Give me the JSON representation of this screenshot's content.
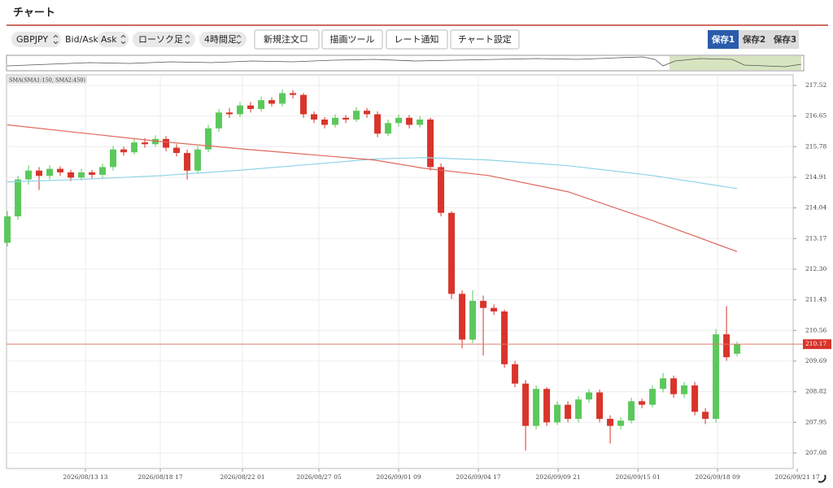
{
  "header": {
    "title": "チャート"
  },
  "toolbar": {
    "symbol": "GBPJPY",
    "price_label": "Bid/Ask",
    "price_side": "Ask",
    "chart_style": "ローソク足",
    "timeframe": "4時間足",
    "buttons": [
      "新規注文",
      "描画ツール",
      "レート通知",
      "チャート設定"
    ],
    "saves": [
      "保存1",
      "保存2",
      "保存3"
    ]
  },
  "chart_data": {
    "type": "candlestick",
    "indicator_label": "SMA(SMA1:150, SMA2:450)",
    "up_color": "#5cc85c",
    "down_color": "#d9342b",
    "grid": true,
    "xlim": [
      -0.08,
      74.3
    ],
    "ylim": [
      206.64,
      217.82
    ],
    "xticks": [
      {
        "value": 7.38,
        "label": "2026/08/13 13"
      },
      {
        "value": 14.46,
        "label": "2026/08/18 17"
      },
      {
        "value": 22.23,
        "label": "2026/08/22 01"
      },
      {
        "value": 29.46,
        "label": "2026/08/27 05"
      },
      {
        "value": 37.0,
        "label": "2026/09/01 09"
      },
      {
        "value": 44.54,
        "label": "2026/09/04 17"
      },
      {
        "value": 52.08,
        "label": "2026/09/09 21"
      },
      {
        "value": 59.62,
        "label": "2026/09/15 01"
      },
      {
        "value": 67.15,
        "label": "2026/09/18 09"
      },
      {
        "value": 74.69,
        "label": "2026/09/21 17"
      }
    ],
    "yticks": [
      217.52,
      216.65,
      215.78,
      214.91,
      214.04,
      213.17,
      {
        "value": 212.3,
        "label": "212.30"
      },
      211.43,
      210.56,
      209.69,
      208.82,
      207.95,
      207.08
    ],
    "open": [
      213.05,
      213.8,
      214.85,
      215.1,
      214.95,
      215.15,
      215.05,
      214.9,
      215.05,
      214.98,
      215.2,
      215.7,
      215.62,
      215.9,
      215.85,
      216.0,
      215.75,
      215.6,
      215.1,
      215.7,
      216.3,
      216.75,
      216.7,
      216.95,
      216.85,
      217.1,
      217.0,
      217.3,
      217.25,
      216.7,
      216.55,
      216.4,
      216.6,
      216.55,
      216.8,
      216.7,
      216.15,
      216.45,
      216.6,
      216.4,
      216.55,
      215.2,
      213.9,
      211.6,
      210.3,
      211.4,
      211.2,
      211.1,
      209.6,
      209.05,
      207.85,
      208.9,
      207.95,
      208.45,
      208.05,
      208.6,
      208.8,
      208.05,
      207.85,
      208.0,
      208.55,
      208.45,
      208.9,
      209.2,
      208.75,
      209.0,
      208.25,
      208.05,
      210.45,
      209.9
    ],
    "high": [
      213.95,
      214.95,
      215.25,
      215.2,
      215.25,
      215.22,
      215.12,
      215.15,
      215.12,
      215.3,
      215.8,
      215.78,
      216.0,
      216.02,
      216.1,
      216.08,
      215.85,
      215.7,
      215.8,
      216.4,
      216.85,
      216.88,
      217.05,
      217.05,
      217.2,
      217.18,
      217.4,
      217.38,
      217.3,
      216.78,
      216.62,
      216.7,
      216.68,
      216.9,
      216.88,
      216.78,
      216.55,
      216.7,
      216.68,
      216.65,
      216.6,
      215.3,
      213.95,
      211.7,
      211.7,
      211.55,
      211.3,
      211.15,
      209.7,
      209.15,
      209.0,
      208.95,
      208.55,
      208.55,
      208.7,
      208.9,
      208.88,
      208.15,
      208.1,
      208.65,
      208.62,
      209.0,
      209.35,
      209.28,
      209.1,
      209.1,
      208.35,
      210.6,
      211.25,
      210.25
    ],
    "low": [
      212.95,
      213.7,
      214.7,
      214.55,
      214.85,
      214.95,
      214.8,
      214.82,
      214.88,
      214.9,
      215.1,
      215.52,
      215.55,
      215.75,
      215.78,
      215.65,
      215.5,
      214.85,
      215.02,
      215.62,
      216.2,
      216.6,
      216.62,
      216.75,
      216.78,
      216.92,
      216.92,
      217.15,
      216.6,
      216.45,
      216.3,
      216.32,
      216.45,
      216.48,
      216.6,
      216.05,
      216.08,
      216.35,
      216.3,
      216.32,
      215.1,
      213.8,
      211.45,
      210.05,
      210.2,
      209.85,
      211.0,
      209.5,
      208.95,
      207.15,
      207.75,
      207.85,
      207.88,
      207.95,
      207.95,
      208.5,
      207.95,
      207.35,
      207.75,
      207.92,
      208.35,
      208.38,
      208.8,
      208.65,
      208.65,
      208.15,
      207.9,
      207.95,
      209.7,
      209.82
    ],
    "close": [
      213.8,
      214.85,
      215.1,
      214.95,
      215.15,
      215.05,
      214.9,
      215.05,
      214.98,
      215.2,
      215.7,
      215.62,
      215.9,
      215.85,
      216.0,
      215.75,
      215.6,
      215.1,
      215.7,
      216.3,
      216.75,
      216.7,
      216.95,
      216.85,
      217.1,
      217.0,
      217.3,
      217.25,
      216.7,
      216.55,
      216.4,
      216.6,
      216.55,
      216.8,
      216.7,
      216.15,
      216.45,
      216.6,
      216.4,
      216.55,
      215.2,
      213.9,
      211.6,
      210.3,
      211.4,
      211.2,
      211.1,
      209.6,
      209.05,
      207.85,
      208.9,
      207.95,
      208.45,
      208.05,
      208.6,
      208.8,
      208.05,
      207.85,
      208.0,
      208.55,
      208.45,
      208.9,
      209.2,
      208.75,
      209.0,
      208.25,
      208.05,
      210.45,
      209.8,
      210.17
    ],
    "sma": [
      {
        "color": "#8fd3e8",
        "x": [
          0,
          7,
          14.7,
          22.4,
          30,
          34.7,
          39.3,
          45.5,
          53,
          61,
          69
        ],
        "values": [
          214.78,
          214.85,
          214.96,
          215.12,
          215.31,
          215.43,
          215.47,
          215.4,
          215.24,
          214.96,
          214.59
        ]
      },
      {
        "color": "#e0695c",
        "x": [
          0,
          7,
          14.7,
          22.4,
          30,
          34.7,
          39.3,
          45.5,
          53,
          61,
          69
        ],
        "values": [
          216.4,
          216.17,
          215.92,
          215.71,
          215.52,
          215.4,
          215.17,
          214.96,
          214.5,
          213.68,
          212.8
        ]
      }
    ],
    "last_price": 210.17,
    "last_price_color": "#e07b6e"
  }
}
